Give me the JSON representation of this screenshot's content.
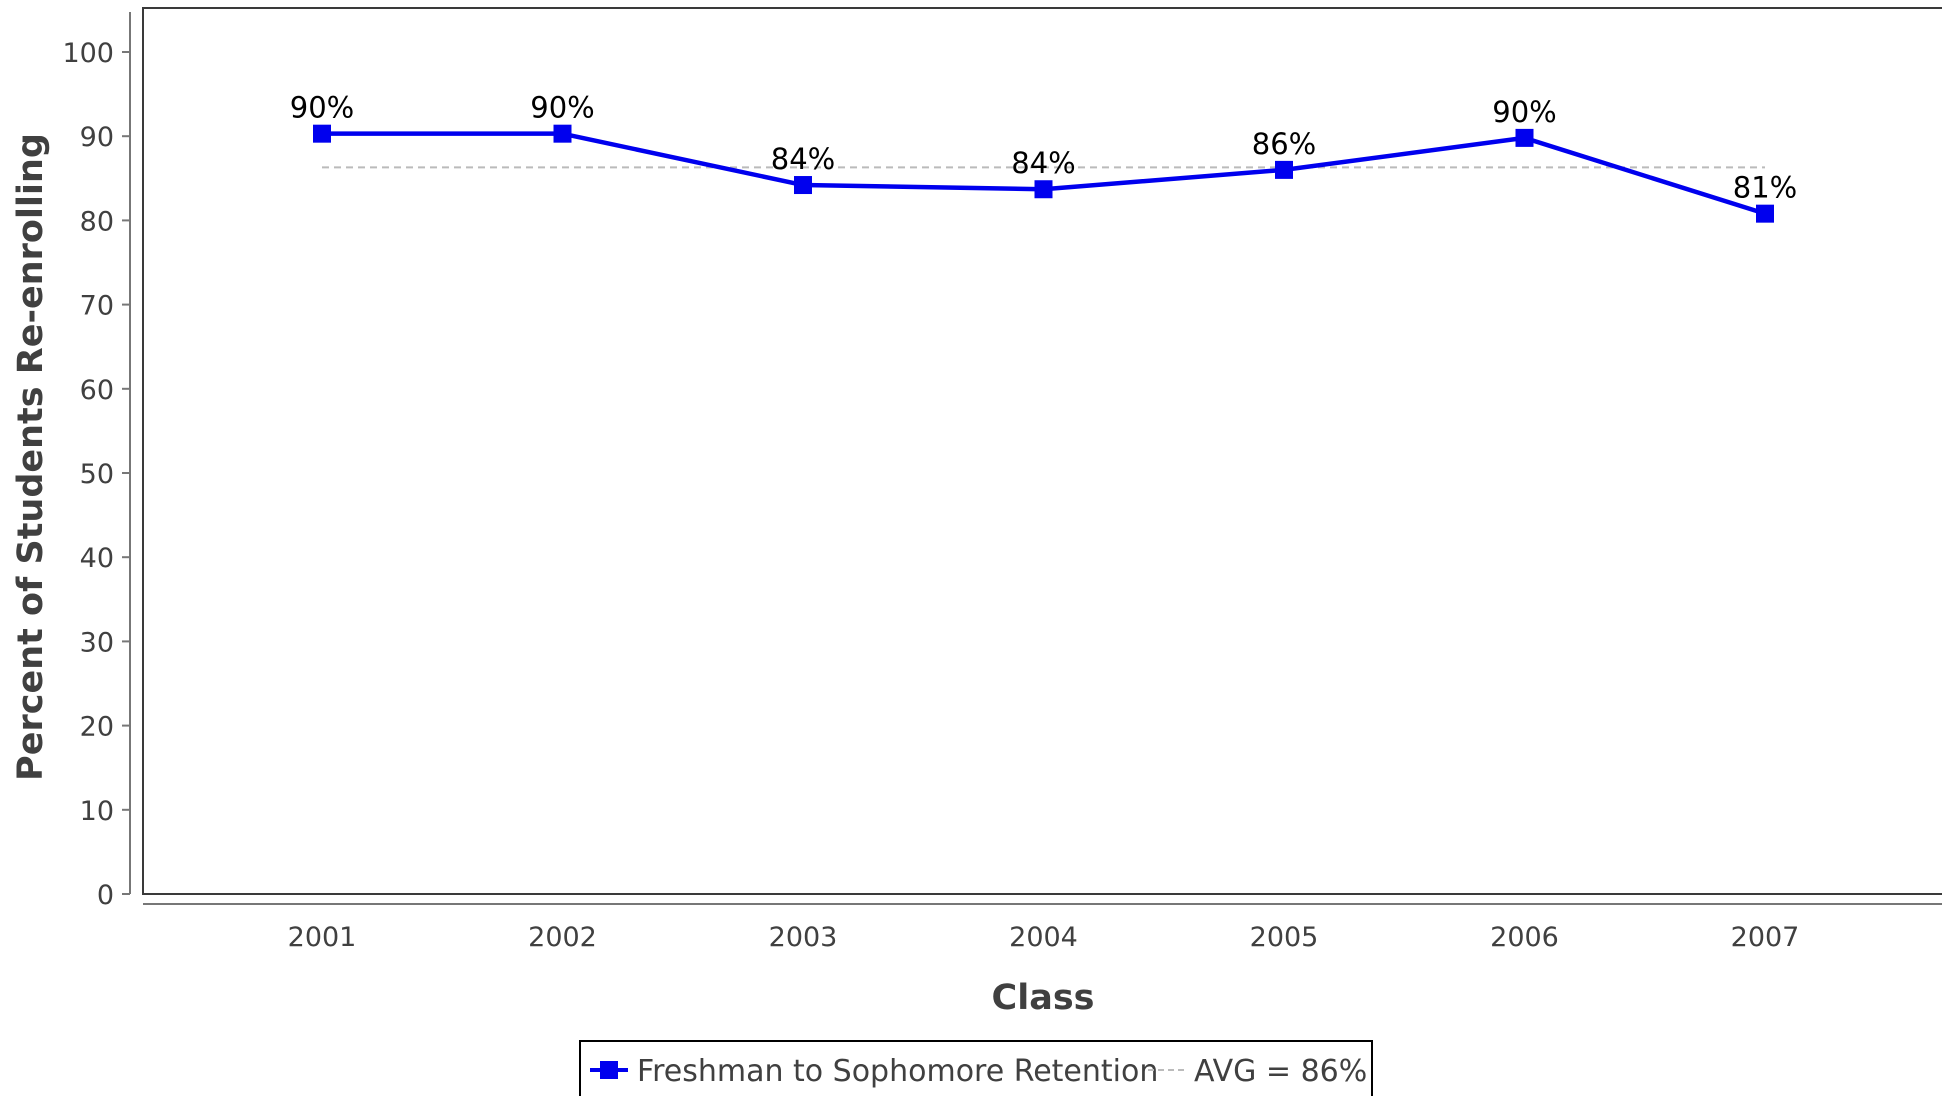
{
  "chart_data": {
    "type": "line",
    "categories": [
      "2001",
      "2002",
      "2003",
      "2004",
      "2005",
      "2006",
      "2007"
    ],
    "series": [
      {
        "name": "Freshman to Sophomore Retention",
        "values": [
          90.3,
          90.3,
          84.2,
          83.7,
          86.0,
          89.8,
          80.8
        ],
        "data_labels": [
          "90%",
          "90%",
          "84%",
          "84%",
          "86%",
          "90%",
          "81%"
        ],
        "color": "#0000ee"
      }
    ],
    "average": {
      "label": "AVG = 86%",
      "value": 86.3,
      "color": "#bbbbbb"
    },
    "xlabel": "Class",
    "ylabel": "Percent of Students Re-enrolling",
    "ylim": [
      0,
      100
    ],
    "yticks": [
      0,
      10,
      20,
      30,
      40,
      50,
      60,
      70,
      80,
      90,
      100
    ],
    "grid": false,
    "legend_position": "bottom-center"
  }
}
